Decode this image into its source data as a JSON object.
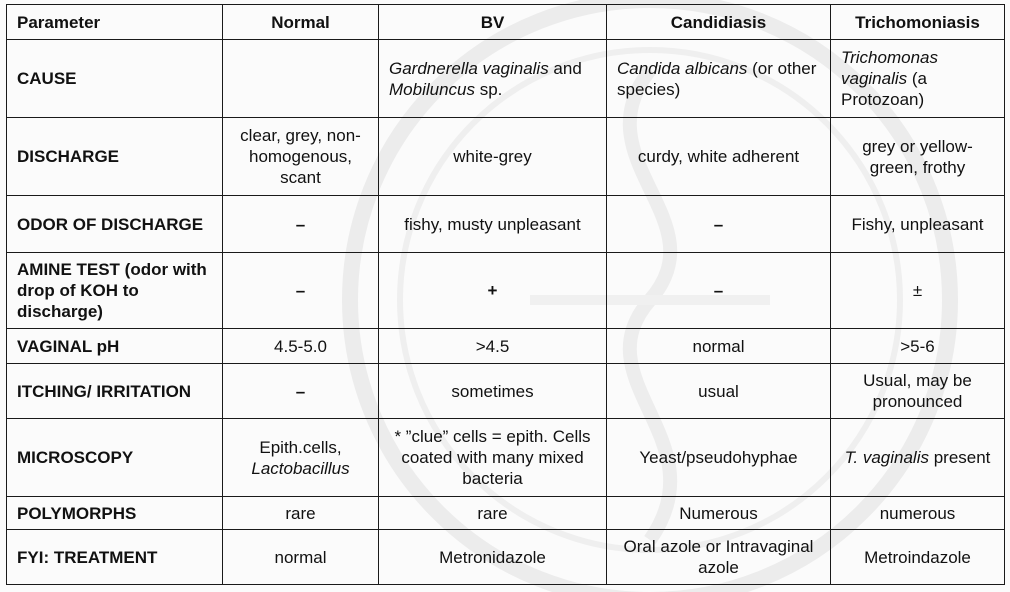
{
  "header": {
    "parameter": "Parameter",
    "normal": "Normal",
    "bv": "BV",
    "candidiasis": "Candidiasis",
    "trichomoniasis": "Trichomoniasis"
  },
  "rows": {
    "cause": {
      "label": "CAUSE",
      "normal": "",
      "bv_italic1": "Gardnerella vaginalis",
      "bv_plain1": " and ",
      "bv_italic2": "Mobiluncus",
      "bv_plain2": " sp.",
      "cand_italic": "Candida albicans",
      "cand_plain": " (or other species)",
      "trich_italic": "Trichomonas vaginalis",
      "trich_plain": " (a Protozoan)"
    },
    "discharge": {
      "label": "DISCHARGE",
      "normal": "clear, grey, non-homogenous, scant",
      "bv": "white-grey",
      "candidiasis": "curdy, white adherent",
      "trichomoniasis": "grey or yellow-green, frothy"
    },
    "odor": {
      "label": "ODOR OF DISCHARGE",
      "normal": "–",
      "bv": "fishy, musty unpleasant",
      "candidiasis": "–",
      "trichomoniasis": "Fishy, unpleasant"
    },
    "amine": {
      "label": "AMINE TEST (odor with drop of KOH to discharge)",
      "normal": "–",
      "bv": "+",
      "candidiasis": "–",
      "trichomoniasis": "±"
    },
    "ph": {
      "label": "VAGINAL pH",
      "normal": "4.5-5.0",
      "bv": ">4.5",
      "candidiasis": "normal",
      "trichomoniasis": ">5-6"
    },
    "itching": {
      "label": "ITCHING/ IRRITATION",
      "normal": "–",
      "bv": "sometimes",
      "candidiasis": "usual",
      "trichomoniasis": "Usual, may be pronounced"
    },
    "microscopy": {
      "label": "MICROSCOPY",
      "normal_plain": "Epith.cells, ",
      "normal_italic": "Lactobacillus",
      "bv": "* ”clue” cells = epith. Cells coated with many mixed bacteria",
      "candidiasis": "Yeast/pseudohyphae",
      "trich_italic": "T. vaginalis",
      "trich_plain": " present"
    },
    "polymorphs": {
      "label": "POLYMORPHS",
      "normal": "rare",
      "bv": "rare",
      "candidiasis": "Numerous",
      "trichomoniasis": "numerous"
    },
    "treatment": {
      "label": "FYI: TREATMENT",
      "normal": "normal",
      "bv": "Metronidazole",
      "candidiasis": "Oral azole or Intravaginal azole",
      "trichomoniasis": "Metroindazole"
    }
  }
}
